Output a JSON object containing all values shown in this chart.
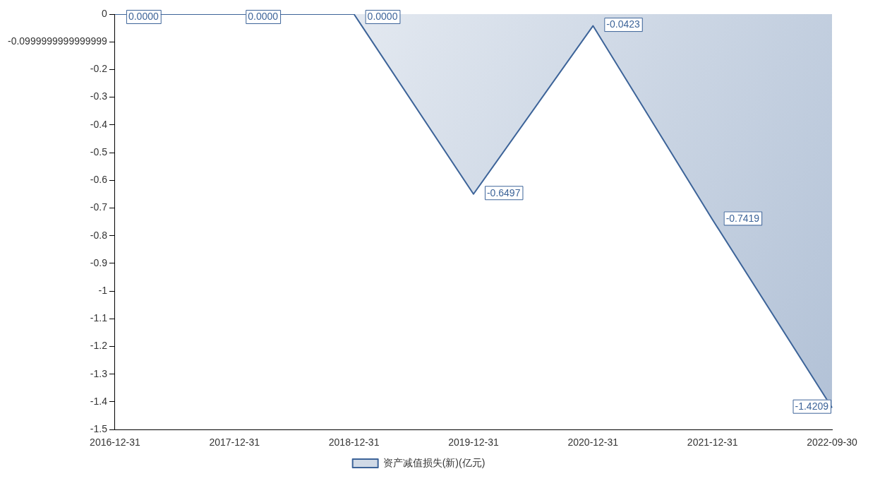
{
  "chart_data": {
    "type": "area",
    "categories": [
      "2016-12-31",
      "2017-12-31",
      "2018-12-31",
      "2019-12-31",
      "2020-12-31",
      "2021-12-31",
      "2022-09-30"
    ],
    "series": [
      {
        "name": "资产减值损失(新)(亿元)",
        "color": "#3d6499",
        "values": [
          0,
          0,
          0,
          -0.6497,
          -0.0423,
          -0.7419,
          -1.4209
        ],
        "value_labels": [
          "0.0000",
          "0.0000",
          "0.0000",
          "-0.6497",
          "-0.0423",
          "-0.7419",
          "-1.4209"
        ]
      }
    ],
    "ylim": [
      -1.5,
      0
    ],
    "yticks": [
      0,
      {
        "value": -0.1,
        "label": "-0.0999999999999999"
      },
      -0.2,
      -0.3,
      -0.4,
      -0.5,
      -0.6,
      -0.7,
      -0.8,
      -0.9,
      -1,
      -1.1,
      -1.2,
      -1.3,
      -1.4,
      -1.5
    ],
    "grid": false,
    "legend": "bottom",
    "marker": "none",
    "line_style": "solid"
  }
}
